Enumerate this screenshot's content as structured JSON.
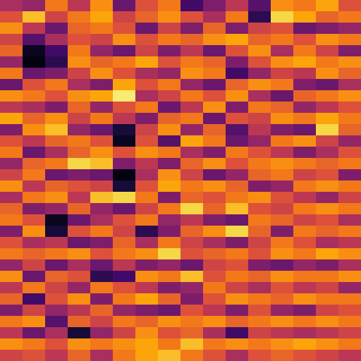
{
  "chart_data": {
    "type": "heatmap",
    "tick_labels": false,
    "zlim": [
      0,
      1
    ],
    "z": [
      [
        0.45,
        0.4,
        0.7,
        0.5,
        0.75,
        0.3,
        0.6,
        0.7,
        0.2,
        0.35,
        0.5,
        0.25,
        0.75,
        0.7,
        0.8,
        0.6
      ],
      [
        0.6,
        0.85,
        0.55,
        0.7,
        0.8,
        0.55,
        0.65,
        0.75,
        0.6,
        0.45,
        0.7,
        0.15,
        0.9,
        0.8,
        0.65,
        0.7
      ],
      [
        0.75,
        0.5,
        0.3,
        0.65,
        0.7,
        0.6,
        0.3,
        0.55,
        0.35,
        0.65,
        0.35,
        0.55,
        0.6,
        0.3,
        0.35,
        0.4
      ],
      [
        0.55,
        0.25,
        0.45,
        0.6,
        0.55,
        0.75,
        0.6,
        0.7,
        0.65,
        0.75,
        0.8,
        0.65,
        0.7,
        0.6,
        0.75,
        0.7
      ],
      [
        0.65,
        0.05,
        0.2,
        0.7,
        0.4,
        0.3,
        0.55,
        0.35,
        0.5,
        0.3,
        0.6,
        0.75,
        0.45,
        0.7,
        0.55,
        0.35
      ],
      [
        0.4,
        0.02,
        0.15,
        0.75,
        0.65,
        0.7,
        0.8,
        0.6,
        0.7,
        0.65,
        0.35,
        0.6,
        0.75,
        0.8,
        0.7,
        0.75
      ],
      [
        0.7,
        0.3,
        0.35,
        0.55,
        0.75,
        0.6,
        0.45,
        0.4,
        0.75,
        0.7,
        0.2,
        0.4,
        0.55,
        0.5,
        0.75,
        0.65
      ],
      [
        0.3,
        0.6,
        0.7,
        0.45,
        0.35,
        0.8,
        0.6,
        0.7,
        0.4,
        0.3,
        0.65,
        0.75,
        0.7,
        0.35,
        0.3,
        0.45
      ],
      [
        0.75,
        0.7,
        0.6,
        0.75,
        0.8,
        0.95,
        0.45,
        0.55,
        0.7,
        0.6,
        0.75,
        0.45,
        0.3,
        0.65,
        0.7,
        0.75
      ],
      [
        0.5,
        0.45,
        0.35,
        0.65,
        0.4,
        0.6,
        0.7,
        0.3,
        0.5,
        0.75,
        0.35,
        0.7,
        0.65,
        0.4,
        0.5,
        0.6
      ],
      [
        0.8,
        0.65,
        0.75,
        0.55,
        0.7,
        0.5,
        0.35,
        0.65,
        0.7,
        0.3,
        0.6,
        0.55,
        0.75,
        0.7,
        0.8,
        0.7
      ],
      [
        0.35,
        0.75,
        0.85,
        0.4,
        0.3,
        0.1,
        0.55,
        0.75,
        0.4,
        0.65,
        0.25,
        0.5,
        0.35,
        0.3,
        0.9,
        0.65
      ],
      [
        0.6,
        0.5,
        0.65,
        0.7,
        0.6,
        0.05,
        0.6,
        0.25,
        0.8,
        0.7,
        0.3,
        0.4,
        0.7,
        0.75,
        0.55,
        0.4
      ],
      [
        0.7,
        0.3,
        0.45,
        0.65,
        0.75,
        0.6,
        0.75,
        0.7,
        0.45,
        0.35,
        0.7,
        0.6,
        0.5,
        0.35,
        0.45,
        0.6
      ],
      [
        0.4,
        0.65,
        0.7,
        0.9,
        0.85,
        0.35,
        0.5,
        0.35,
        0.65,
        0.75,
        0.6,
        0.7,
        0.75,
        0.7,
        0.65,
        0.7
      ],
      [
        0.55,
        0.7,
        0.3,
        0.35,
        0.3,
        0.02,
        0.45,
        0.75,
        0.55,
        0.3,
        0.4,
        0.65,
        0.7,
        0.55,
        0.6,
        0.35
      ],
      [
        0.75,
        0.5,
        0.65,
        0.6,
        0.55,
        0.1,
        0.6,
        0.8,
        0.7,
        0.75,
        0.65,
        0.35,
        0.4,
        0.7,
        0.75,
        0.7
      ],
      [
        0.45,
        0.7,
        0.75,
        0.5,
        0.85,
        0.9,
        0.7,
        0.35,
        0.65,
        0.6,
        0.7,
        0.75,
        0.6,
        0.5,
        0.4,
        0.55
      ],
      [
        0.65,
        0.35,
        0.4,
        0.65,
        0.4,
        0.3,
        0.55,
        0.7,
        0.9,
        0.65,
        0.85,
        0.6,
        0.55,
        0.7,
        0.75,
        0.7
      ],
      [
        0.7,
        0.6,
        0.05,
        0.3,
        0.45,
        0.6,
        0.7,
        0.4,
        0.5,
        0.35,
        0.3,
        0.7,
        0.65,
        0.55,
        0.6,
        0.45
      ],
      [
        0.35,
        0.75,
        0.1,
        0.6,
        0.7,
        0.55,
        0.15,
        0.35,
        0.65,
        0.75,
        0.9,
        0.65,
        0.35,
        0.7,
        0.65,
        0.7
      ],
      [
        0.6,
        0.45,
        0.5,
        0.3,
        0.35,
        0.65,
        0.45,
        0.7,
        0.55,
        0.45,
        0.35,
        0.55,
        0.7,
        0.6,
        0.45,
        0.5
      ],
      [
        0.7,
        0.65,
        0.7,
        0.75,
        0.6,
        0.7,
        0.75,
        0.9,
        0.6,
        0.65,
        0.7,
        0.6,
        0.75,
        0.7,
        0.8,
        0.75
      ],
      [
        0.4,
        0.55,
        0.3,
        0.45,
        0.3,
        0.5,
        0.35,
        0.4,
        0.3,
        0.55,
        0.6,
        0.35,
        0.3,
        0.4,
        0.35,
        0.45
      ],
      [
        0.75,
        0.3,
        0.65,
        0.6,
        0.15,
        0.2,
        0.75,
        0.7,
        0.85,
        0.6,
        0.7,
        0.65,
        0.75,
        0.7,
        0.7,
        0.75
      ],
      [
        0.5,
        0.7,
        0.55,
        0.4,
        0.7,
        0.6,
        0.5,
        0.35,
        0.4,
        0.7,
        0.55,
        0.45,
        0.6,
        0.5,
        0.55,
        0.4
      ],
      [
        0.65,
        0.2,
        0.6,
        0.75,
        0.35,
        0.7,
        0.8,
        0.65,
        0.35,
        0.6,
        0.75,
        0.7,
        0.65,
        0.75,
        0.7,
        0.7
      ],
      [
        0.35,
        0.55,
        0.4,
        0.5,
        0.65,
        0.4,
        0.35,
        0.3,
        0.6,
        0.5,
        0.35,
        0.6,
        0.4,
        0.35,
        0.55,
        0.6
      ],
      [
        0.7,
        0.75,
        0.25,
        0.65,
        0.55,
        0.7,
        0.65,
        0.75,
        0.7,
        0.75,
        0.65,
        0.7,
        0.75,
        0.7,
        0.75,
        0.7
      ],
      [
        0.5,
        0.3,
        0.45,
        0.1,
        0.4,
        0.55,
        0.75,
        0.6,
        0.65,
        0.45,
        0.2,
        0.55,
        0.5,
        0.45,
        0.5,
        0.55
      ],
      [
        0.75,
        0.7,
        0.6,
        0.75,
        0.7,
        0.75,
        0.8,
        0.7,
        0.85,
        0.7,
        0.75,
        0.7,
        0.75,
        0.8,
        0.75,
        0.7
      ],
      [
        0.55,
        0.6,
        0.5,
        0.65,
        0.45,
        0.7,
        0.8,
        0.85,
        0.7,
        0.6,
        0.45,
        0.6,
        0.65,
        0.6,
        0.55,
        0.5
      ]
    ]
  }
}
